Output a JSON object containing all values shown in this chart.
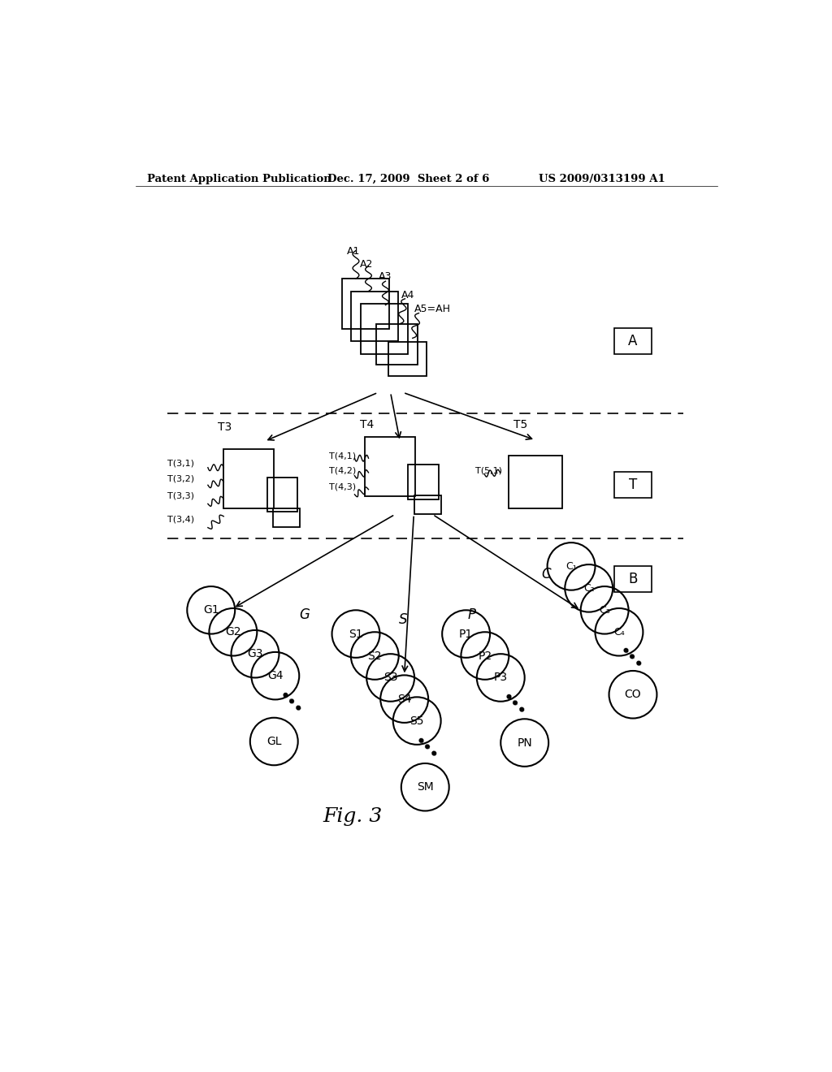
{
  "bg_color": "#ffffff",
  "header_left": "Patent Application Publication",
  "header_mid": "Dec. 17, 2009  Sheet 2 of 6",
  "header_right": "US 2009/0313199 A1",
  "fig_label": "Fig. 3",
  "label_A": "A",
  "label_T": "T",
  "label_B": "B",
  "label_G": "G",
  "label_S": "S",
  "label_P": "P",
  "label_C": "C"
}
